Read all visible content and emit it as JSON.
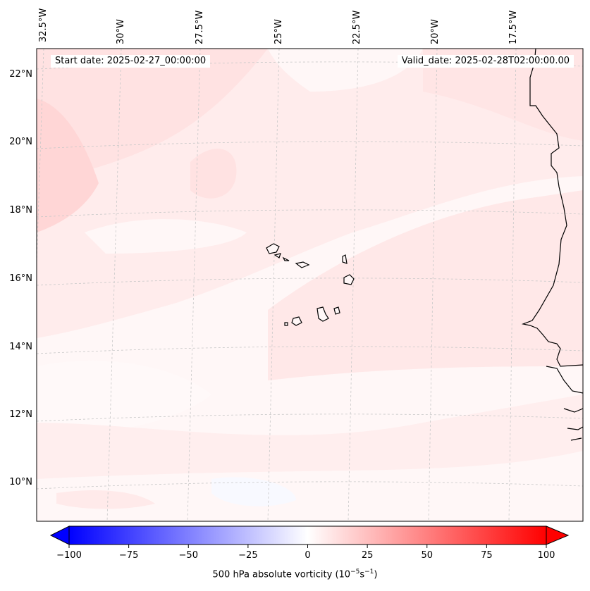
{
  "map": {
    "region": "Cape Verde / West African coast",
    "field": "500 hPa absolute vorticity",
    "lon_labels": [
      "32.5°W",
      "30°W",
      "27.5°W",
      "25°W",
      "22.5°W",
      "20°W",
      "17.5°W"
    ],
    "lat_labels": [
      "22°N",
      "20°N",
      "18°N",
      "16°N",
      "14°N",
      "12°N",
      "10°N"
    ],
    "start_date": "Start date: 2025-02-27_00:00:00",
    "valid_date": "Valid_date: 2025-02-28T02:00:00.00"
  },
  "colorbar": {
    "min": -100,
    "max": 100,
    "ticks": [
      "−100",
      "−75",
      "−50",
      "−25",
      "0",
      "25",
      "50",
      "75",
      "100"
    ],
    "label_prefix": "500 hPa absolute vorticity (10",
    "label_exp1": "−5",
    "label_mid": "s",
    "label_exp2": "−1",
    "label_suffix": ")",
    "colors": {
      "negative": "#0000ff",
      "zero": "#ffffff",
      "positive": "#ff0000"
    }
  }
}
